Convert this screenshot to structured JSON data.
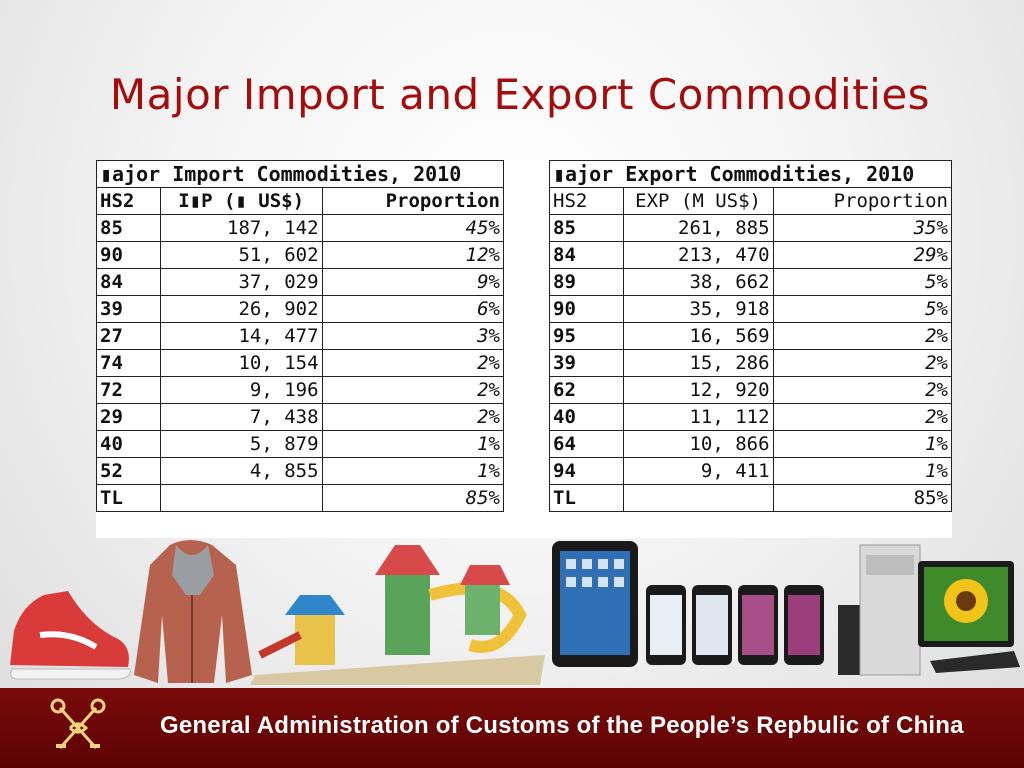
{
  "slide": {
    "title": "Major Import and Export Commodities",
    "footer_text": "General Administration of Customs of the People’s Repbulic of China"
  },
  "import_table": {
    "caption": "▮ajor Import Commodities, 2010",
    "headers": [
      "HS2",
      "I▮P (▮ US$)",
      "Proportion"
    ],
    "rows": [
      [
        "85",
        "187, 142",
        "45%"
      ],
      [
        "90",
        "51, 602",
        "12%"
      ],
      [
        "84",
        "37, 029",
        "9%"
      ],
      [
        "39",
        "26, 902",
        "6%"
      ],
      [
        "27",
        "14, 477",
        "3%"
      ],
      [
        "74",
        "10, 154",
        "2%"
      ],
      [
        "72",
        "9, 196",
        "2%"
      ],
      [
        "29",
        "7, 438",
        "2%"
      ],
      [
        "40",
        "5, 879",
        "1%"
      ],
      [
        "52",
        "4, 855",
        "1%"
      ],
      [
        "TL",
        "",
        "85%"
      ]
    ]
  },
  "export_table": {
    "caption": "▮ajor Export Commodities, 2010",
    "headers": [
      "HS2",
      "EXP (M US$)",
      "Proportion"
    ],
    "rows": [
      [
        "85",
        "261, 885",
        "35%"
      ],
      [
        "84",
        "213, 470",
        "29%"
      ],
      [
        "89",
        "38, 662",
        "5%"
      ],
      [
        "90",
        "35, 918",
        "5%"
      ],
      [
        "95",
        "16, 569",
        "2%"
      ],
      [
        "39",
        "15, 286",
        "2%"
      ],
      [
        "62",
        "12, 920",
        "2%"
      ],
      [
        "40",
        "11, 112",
        "2%"
      ],
      [
        "64",
        "10, 866",
        "1%"
      ],
      [
        "94",
        "9, 411",
        "1%"
      ],
      [
        "TL",
        "",
        "85%"
      ]
    ]
  },
  "colors": {
    "title": "#a50d0d",
    "footer_bg": "#5b0303",
    "footer_text": "#ffffff"
  },
  "illustrations": [
    "sneaker-icon",
    "coat-icon",
    "playground-icon",
    "tablet-icon",
    "smartphones-icon",
    "desktop-computer-icon"
  ]
}
